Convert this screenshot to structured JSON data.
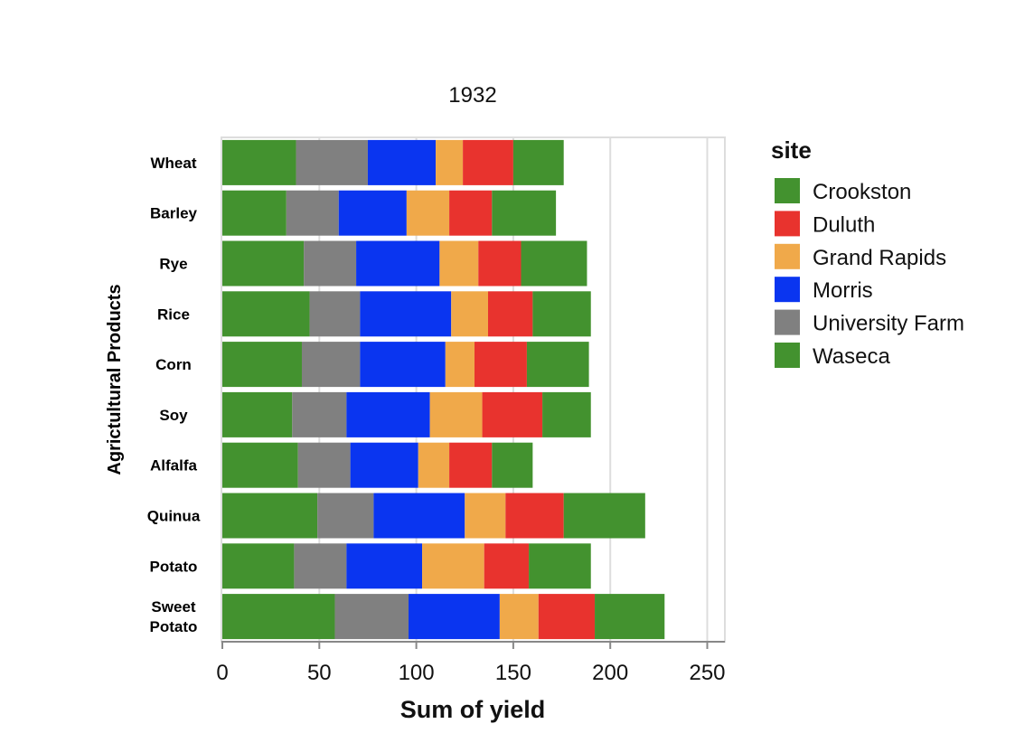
{
  "chart_data": {
    "type": "bar",
    "orientation": "horizontal",
    "stacked": true,
    "title": "1932",
    "xlabel": "Sum of yield",
    "ylabel": "Agrictultural Products",
    "xlim": [
      0,
      260
    ],
    "xticks": [
      0,
      50,
      100,
      150,
      200,
      250
    ],
    "grid": true,
    "legend_title": "site",
    "legend_position": "right",
    "categories": [
      "Wheat",
      "Barley",
      "Rye",
      "Rice",
      "Corn",
      "Soy",
      "Alfalfa",
      "Quinua",
      "Potato",
      "Sweet Potato"
    ],
    "series": [
      {
        "name": "Crookston",
        "color": "#43922f",
        "values": [
          38,
          33,
          42,
          45,
          41,
          36,
          39,
          49,
          37,
          58
        ]
      },
      {
        "name": "University Farm",
        "color": "#808080",
        "values": [
          37,
          27,
          27,
          26,
          30,
          28,
          27,
          29,
          27,
          38
        ]
      },
      {
        "name": "Morris",
        "color": "#0a35f0",
        "values": [
          35,
          35,
          43,
          47,
          44,
          43,
          35,
          47,
          39,
          47
        ]
      },
      {
        "name": "Grand Rapids",
        "color": "#f0a94a",
        "values": [
          14,
          22,
          20,
          19,
          15,
          27,
          16,
          21,
          32,
          20
        ]
      },
      {
        "name": "Duluth",
        "color": "#e8332e",
        "values": [
          26,
          22,
          22,
          23,
          27,
          31,
          22,
          30,
          23,
          29
        ]
      },
      {
        "name": "Waseca",
        "color": "#43922f",
        "values": [
          26,
          33,
          34,
          30,
          32,
          25,
          21,
          42,
          32,
          36
        ]
      }
    ],
    "legend_order": [
      "Crookston",
      "Duluth",
      "Grand Rapids",
      "Morris",
      "University Farm",
      "Waseca"
    ],
    "category_display": [
      [
        "Wheat"
      ],
      [
        "Barley"
      ],
      [
        "Rye"
      ],
      [
        "Rice"
      ],
      [
        "Corn"
      ],
      [
        "Soy"
      ],
      [
        "Alfalfa"
      ],
      [
        "Quinua"
      ],
      [
        "Potato"
      ],
      [
        "Sweet",
        "Potato"
      ]
    ]
  }
}
